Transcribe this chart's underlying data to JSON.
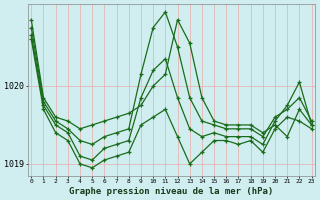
{
  "title": "Graphe pression niveau de la mer (hPa)",
  "bg_color": "#d0eef0",
  "line_color": "#1a6b1a",
  "grid_color": "#e8b0b0",
  "yticks": [
    1019,
    1020
  ],
  "ylim": [
    1018.85,
    1021.05
  ],
  "xlim": [
    -0.3,
    23.3
  ],
  "xticks": [
    0,
    1,
    2,
    3,
    4,
    5,
    6,
    7,
    8,
    9,
    10,
    11,
    12,
    13,
    14,
    15,
    16,
    17,
    18,
    19,
    20,
    21,
    22,
    23
  ],
  "series": [
    [
      1020.85,
      1019.85,
      1019.6,
      1019.55,
      1019.45,
      1019.5,
      1019.55,
      1019.6,
      1019.65,
      1019.75,
      1020.0,
      1020.15,
      1020.85,
      1020.55,
      1019.85,
      1019.55,
      1019.5,
      1019.5,
      1019.5,
      1019.4,
      1019.5,
      1019.35,
      1019.7,
      1019.5
    ],
    [
      1020.75,
      1019.8,
      1019.55,
      1019.45,
      1019.3,
      1019.25,
      1019.35,
      1019.4,
      1019.45,
      1020.15,
      1020.75,
      1020.95,
      1020.5,
      1019.85,
      1019.55,
      1019.5,
      1019.45,
      1019.45,
      1019.45,
      1019.35,
      1019.6,
      1019.7,
      1019.85,
      1019.55
    ],
    [
      1020.65,
      1019.75,
      1019.5,
      1019.4,
      1019.1,
      1019.05,
      1019.2,
      1019.25,
      1019.3,
      1019.85,
      1020.2,
      1020.35,
      1019.85,
      1019.45,
      1019.35,
      1019.4,
      1019.35,
      1019.35,
      1019.35,
      1019.25,
      1019.55,
      1019.75,
      1020.05,
      1019.5
    ],
    [
      1020.6,
      1019.7,
      1019.4,
      1019.3,
      1019.0,
      1018.95,
      1019.05,
      1019.1,
      1019.15,
      1019.5,
      1019.6,
      1019.7,
      1019.35,
      1019.0,
      1019.15,
      1019.3,
      1019.3,
      1019.25,
      1019.3,
      1019.15,
      1019.45,
      1019.6,
      1019.55,
      1019.45
    ]
  ]
}
